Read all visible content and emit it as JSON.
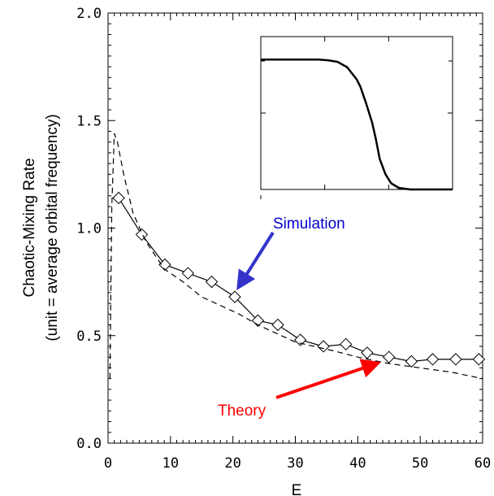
{
  "chart_data": [
    {
      "type": "line",
      "title": "",
      "xlabel": "E",
      "ylabel": "Chaotic-Mixing Rate",
      "ylabel_sub": "(unit = average orbital frequency)",
      "xlim": [
        0,
        60
      ],
      "ylim": [
        0,
        2.0
      ],
      "xticks": [
        "0",
        "10",
        "20",
        "30",
        "40",
        "50",
        "60"
      ],
      "yticks": [
        "0.0",
        "0.5",
        "1.0",
        "1.5",
        "2.0"
      ],
      "grid": false,
      "series": [
        {
          "name": "Simulation",
          "style": "solid-diamonds",
          "color": "#000000",
          "x": [
            1.7,
            5.4,
            9.1,
            12.8,
            16.6,
            20.3,
            24.0,
            27.2,
            30.8,
            34.5,
            38.1,
            41.5,
            45.0,
            48.6,
            52.0,
            55.7,
            59.4
          ],
          "y": [
            1.14,
            0.97,
            0.83,
            0.79,
            0.75,
            0.68,
            0.57,
            0.55,
            0.48,
            0.45,
            0.46,
            0.42,
            0.4,
            0.38,
            0.39,
            0.39,
            0.39
          ]
        },
        {
          "name": "Theory",
          "style": "dashed",
          "color": "#000000",
          "x": [
            0.3,
            0.6,
            1.0,
            1.5,
            2.5,
            4,
            6,
            9,
            12,
            15,
            18,
            21,
            24,
            27,
            30,
            33,
            36,
            40,
            45,
            50,
            55,
            60
          ],
          "y": [
            0.3,
            1.1,
            1.44,
            1.4,
            1.25,
            1.07,
            0.94,
            0.81,
            0.75,
            0.68,
            0.64,
            0.6,
            0.55,
            0.51,
            0.47,
            0.45,
            0.43,
            0.4,
            0.37,
            0.35,
            0.33,
            0.3
          ]
        }
      ],
      "annotations": [
        {
          "text": "Simulation",
          "color": "#0000cc",
          "arrow_color": "#3333cc",
          "points_to": [
            21,
            0.73
          ]
        },
        {
          "text": "Theory",
          "color": "#ff0000",
          "arrow_color": "#ff0000",
          "points_to": [
            43,
            0.37
          ]
        }
      ]
    },
    {
      "type": "line",
      "title": "",
      "xlabel": "",
      "ylabel": "",
      "xlim": [
        0,
        1
      ],
      "ylim": [
        0,
        1
      ],
      "series": [
        {
          "style": "solid-thick",
          "x": [
            0.0,
            0.2,
            0.3,
            0.35,
            0.4,
            0.45,
            0.5,
            0.52,
            0.55,
            0.58,
            0.6,
            0.62,
            0.65,
            0.68,
            0.72,
            0.78,
            0.85,
            1.0
          ],
          "y": [
            0.85,
            0.85,
            0.85,
            0.845,
            0.835,
            0.8,
            0.72,
            0.67,
            0.56,
            0.44,
            0.33,
            0.2,
            0.1,
            0.04,
            0.01,
            0.0,
            0.0,
            0.0
          ]
        }
      ]
    }
  ]
}
